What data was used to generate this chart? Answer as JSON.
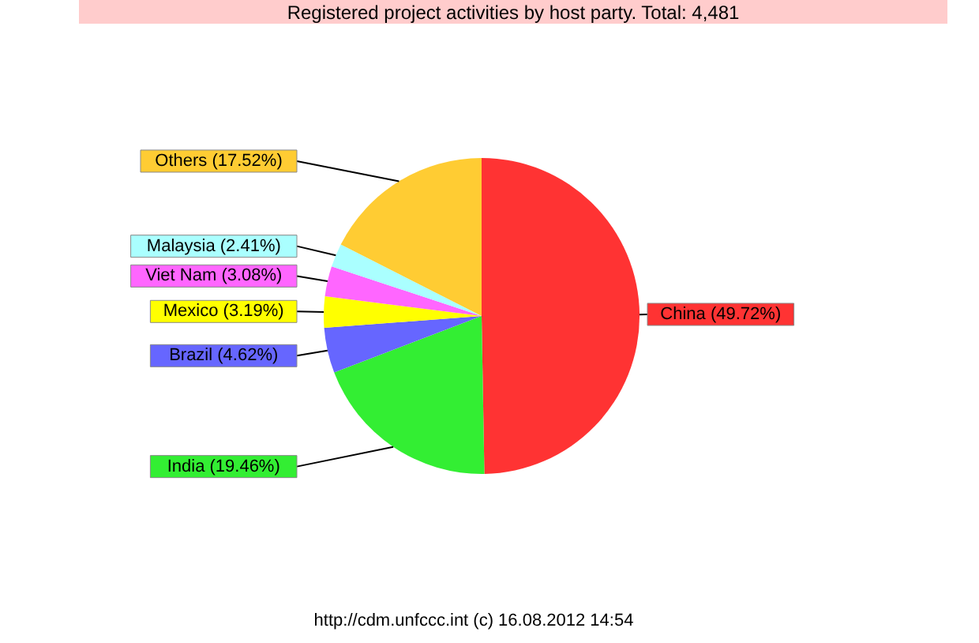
{
  "chart_data": {
    "type": "pie",
    "title": "Registered project activities by host party. Total: 4,481",
    "categories": [
      "China",
      "India",
      "Brazil",
      "Mexico",
      "Viet Nam",
      "Malaysia",
      "Others"
    ],
    "values": [
      49.72,
      19.46,
      4.62,
      3.19,
      3.08,
      2.41,
      17.52
    ],
    "colors": [
      "#ff3333",
      "#33ee33",
      "#6666ff",
      "#ffff00",
      "#ff66ff",
      "#aaffff",
      "#ffcc33"
    ],
    "value_labels": [
      "(49.72%)",
      "(19.46%)",
      "(4.62%)",
      "(3.19%)",
      "(3.08%)",
      "(2.41%)",
      "(17.52%)"
    ],
    "annotations": [
      "http://cdm.unfccc.int (c) 16.08.2012 14:54"
    ]
  }
}
